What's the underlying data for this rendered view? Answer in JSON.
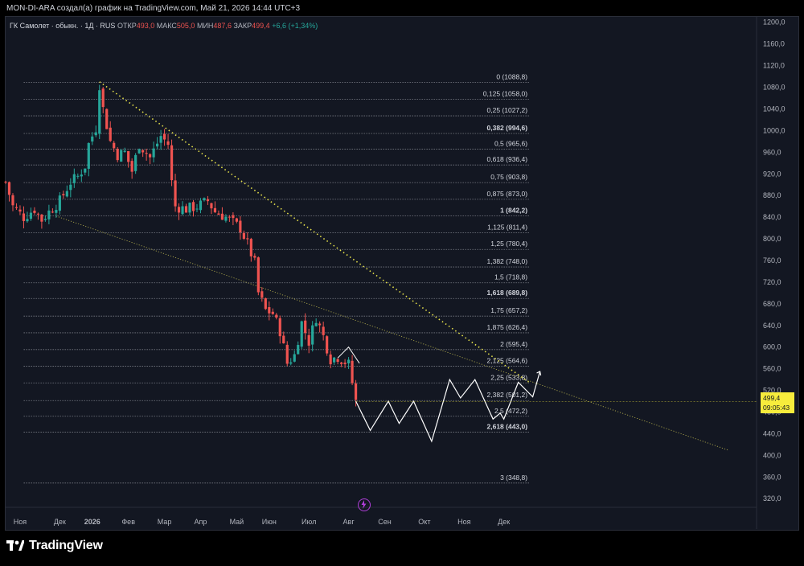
{
  "header": {
    "attribution": "MON-DI-ARA создал(а) график на TradingView.com, Май 21, 2026 14:44 UTC+3"
  },
  "legend": {
    "symbol": "ГК Самолет · обыкн. · 1Д · RUS",
    "open_label": "ОТКР",
    "open_value": "493,0",
    "high_label": "МАКС",
    "high_value": "505,0",
    "low_label": "МИН",
    "low_value": "487,6",
    "close_label": "ЗАКР",
    "close_value": "499,4",
    "change": "+6,6 (+1,34%)"
  },
  "price_badge": {
    "price": "499,4",
    "countdown": "09:05:43"
  },
  "footer": {
    "brand": "TradingView"
  },
  "colors": {
    "background": "#131722",
    "up": "#26a69a",
    "down": "#ef5350",
    "fib_line": "#9598a1",
    "trendline_upper": "#e8e34b",
    "trendline_lower": "#a8a34a",
    "forecast_path": "#ffffff",
    "price_badge": "#f7ec3c"
  },
  "chart_data": {
    "type": "line",
    "kind": "candlestick-with-fibonacci-extension",
    "y_scale": "linear",
    "ylim": [
      304,
      1210
    ],
    "y_ticks": [
      "1200,0",
      "1160,0",
      "1120,0",
      "1080,0",
      "1040,0",
      "1000,0",
      "960,0",
      "920,0",
      "880,0",
      "840,0",
      "800,0",
      "760,0",
      "720,0",
      "680,0",
      "640,0",
      "600,0",
      "560,0",
      "520,0",
      "480,0",
      "440,0",
      "400,0",
      "360,0",
      "320,0"
    ],
    "x_ticks": [
      "Ноя",
      "Дек",
      "2026",
      "Фев",
      "Мар",
      "Апр",
      "Май",
      "Июн",
      "Июл",
      "Авг",
      "Сен",
      "Окт",
      "Ноя",
      "Дек"
    ],
    "fib_levels": [
      {
        "label": "0 (1088,8)",
        "price": 1088.8,
        "bold": false
      },
      {
        "label": "0,125 (1058,0)",
        "price": 1058.0,
        "bold": false
      },
      {
        "label": "0,25 (1027,2)",
        "price": 1027.2,
        "bold": false
      },
      {
        "label": "0,382 (994,6)",
        "price": 994.6,
        "bold": true
      },
      {
        "label": "0,5 (965,6)",
        "price": 965.6,
        "bold": false
      },
      {
        "label": "0,618 (936,4)",
        "price": 936.4,
        "bold": false
      },
      {
        "label": "0,75 (903,8)",
        "price": 903.8,
        "bold": false
      },
      {
        "label": "0,875 (873,0)",
        "price": 873.0,
        "bold": false
      },
      {
        "label": "1 (842,2)",
        "price": 842.2,
        "bold": true
      },
      {
        "label": "1,125 (811,4)",
        "price": 811.4,
        "bold": false
      },
      {
        "label": "1,25 (780,4)",
        "price": 780.4,
        "bold": false
      },
      {
        "label": "1,382 (748,0)",
        "price": 748.0,
        "bold": false
      },
      {
        "label": "1,5 (718,8)",
        "price": 718.8,
        "bold": false
      },
      {
        "label": "1,618 (689,8)",
        "price": 689.8,
        "bold": true
      },
      {
        "label": "1,75 (657,2)",
        "price": 657.2,
        "bold": false
      },
      {
        "label": "1,875 (626,4)",
        "price": 626.4,
        "bold": false
      },
      {
        "label": "2 (595,4)",
        "price": 595.4,
        "bold": false
      },
      {
        "label": "2,125 (564,6)",
        "price": 564.6,
        "bold": false
      },
      {
        "label": "2,25 (533,8)",
        "price": 533.8,
        "bold": false
      },
      {
        "label": "2,382 (501,2)",
        "price": 501.2,
        "bold": false
      },
      {
        "label": "2,5 (472,2)",
        "price": 472.2,
        "bold": false
      },
      {
        "label": "2,618 (443,0)",
        "price": 443.0,
        "bold": true
      },
      {
        "label": "3 (348,8)",
        "price": 348.8,
        "bold": false
      }
    ],
    "price_path": [
      [
        0,
        905
      ],
      [
        2,
        860
      ],
      [
        5,
        840
      ],
      [
        8,
        855
      ],
      [
        10,
        835
      ],
      [
        12,
        850
      ],
      [
        15,
        870
      ],
      [
        18,
        905
      ],
      [
        20,
        915
      ],
      [
        22,
        935
      ],
      [
        23,
        975
      ],
      [
        25,
        1005
      ],
      [
        26,
        1085
      ],
      [
        27,
        1040
      ],
      [
        29,
        980
      ],
      [
        31,
        955
      ],
      [
        33,
        960
      ],
      [
        35,
        925
      ],
      [
        37,
        975
      ],
      [
        40,
        950
      ],
      [
        43,
        990
      ],
      [
        45,
        975
      ],
      [
        46,
        905
      ],
      [
        47,
        860
      ],
      [
        50,
        855
      ],
      [
        53,
        860
      ],
      [
        56,
        870
      ],
      [
        58,
        850
      ],
      [
        61,
        840
      ],
      [
        63,
        830
      ],
      [
        65,
        820
      ],
      [
        67,
        790
      ],
      [
        69,
        755
      ],
      [
        70,
        700
      ],
      [
        72,
        668
      ],
      [
        74,
        662
      ],
      [
        76,
        630
      ],
      [
        78,
        570
      ],
      [
        80,
        585
      ],
      [
        82,
        645
      ],
      [
        84,
        610
      ],
      [
        86,
        655
      ],
      [
        88,
        620
      ],
      [
        90,
        578
      ],
      [
        92,
        582
      ],
      [
        95,
        568
      ],
      [
        97,
        500
      ]
    ],
    "forecast_path": [
      [
        97,
        500
      ],
      [
        101,
        446
      ],
      [
        106,
        500
      ],
      [
        109,
        459
      ],
      [
        113,
        500
      ],
      [
        118,
        426
      ],
      [
        123,
        540
      ],
      [
        126,
        506
      ],
      [
        130,
        540
      ],
      [
        135,
        467
      ],
      [
        137,
        478
      ],
      [
        138,
        467
      ],
      [
        142,
        535
      ],
      [
        146,
        508
      ],
      [
        148,
        555
      ]
    ],
    "trendlines": [
      {
        "style": "dotted",
        "from": [
          26,
          1090
        ],
        "to": [
          145,
          535
        ]
      },
      {
        "style": "fine-dotted",
        "from": [
          14,
          842
        ],
        "to": [
          200,
          410
        ]
      }
    ],
    "last_price": 499.4
  }
}
